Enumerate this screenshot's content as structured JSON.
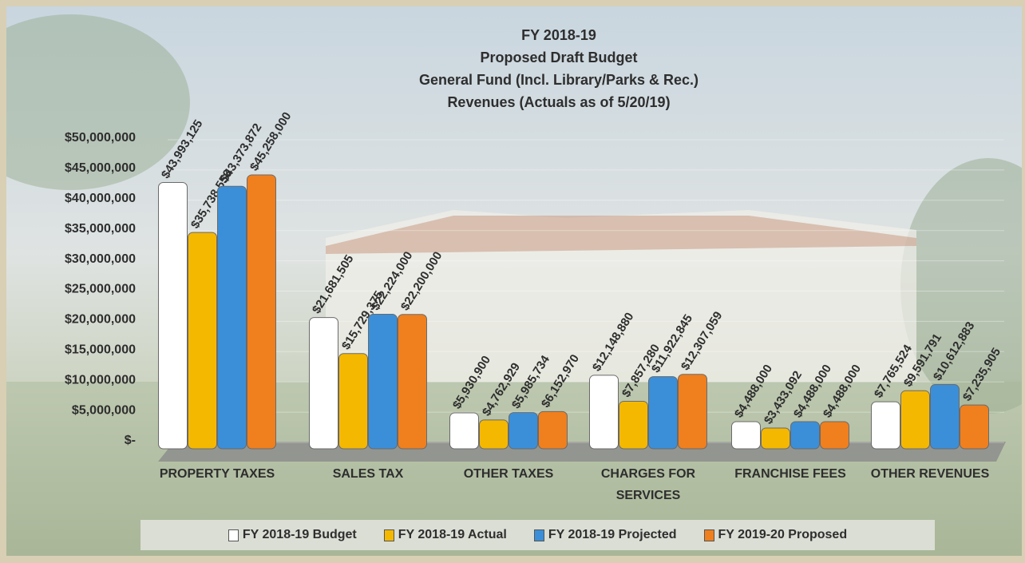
{
  "chart_data": {
    "type": "bar",
    "title": [
      "FY 2018-19",
      "Proposed Draft Budget",
      "General Fund (Incl. Library/Parks & Rec.)",
      "Revenues (Actuals as of 5/20/19)"
    ],
    "categories": [
      "PROPERTY TAXES",
      "SALES TAX",
      "OTHER TAXES",
      "CHARGES FOR SERVICES",
      "FRANCHISE FEES",
      "OTHER REVENUES"
    ],
    "series": [
      {
        "name": "FY 2018-19 Budget",
        "color": "#ffffff",
        "values": [
          43993125,
          21681505,
          5930900,
          12148880,
          4488000,
          7765524
        ],
        "value_labels": [
          "$43,993,125",
          "$21,681,505",
          "$5,930,900",
          "$12,148,880",
          "$4,488,000",
          "$7,765,524"
        ]
      },
      {
        "name": "FY 2018-19 Actual",
        "color": "#f5b800",
        "values": [
          35738556,
          15729375,
          4762929,
          7857280,
          3433092,
          9591791
        ],
        "value_labels": [
          "$35,738,556",
          "$15,729,375",
          "$4,762,929",
          "$7,857,280",
          "$3,433,092",
          "$9,591,791"
        ]
      },
      {
        "name": "FY 2018-19 Projected",
        "color": "#3b8fd8",
        "values": [
          43373872,
          22224000,
          5985734,
          11922845,
          4488000,
          10612883
        ],
        "value_labels": [
          "$43,373,872",
          "$22,224,000",
          "$5,985,734",
          "$11,922,845",
          "$4,488,000",
          "$10,612,883"
        ]
      },
      {
        "name": "FY 2019-20 Proposed",
        "color": "#f07f1e",
        "values": [
          45258000,
          22200000,
          6152970,
          12307059,
          4488000,
          7235905
        ],
        "value_labels": [
          "$45,258,000",
          "$22,200,000",
          "$6,152,970",
          "$12,307,059",
          "$4,488,000",
          "$7,235,905"
        ]
      }
    ],
    "ylim": [
      0,
      50000000
    ],
    "yticks": [
      {
        "value": 0,
        "label": "$-"
      },
      {
        "value": 5000000,
        "label": "$5,000,000"
      },
      {
        "value": 10000000,
        "label": "$10,000,000"
      },
      {
        "value": 15000000,
        "label": "$15,000,000"
      },
      {
        "value": 20000000,
        "label": "$20,000,000"
      },
      {
        "value": 25000000,
        "label": "$25,000,000"
      },
      {
        "value": 30000000,
        "label": "$30,000,000"
      },
      {
        "value": 35000000,
        "label": "$35,000,000"
      },
      {
        "value": 40000000,
        "label": "$40,000,000"
      },
      {
        "value": 45000000,
        "label": "$45,000,000"
      },
      {
        "value": 50000000,
        "label": "$50,000,000"
      }
    ],
    "grid": true
  }
}
